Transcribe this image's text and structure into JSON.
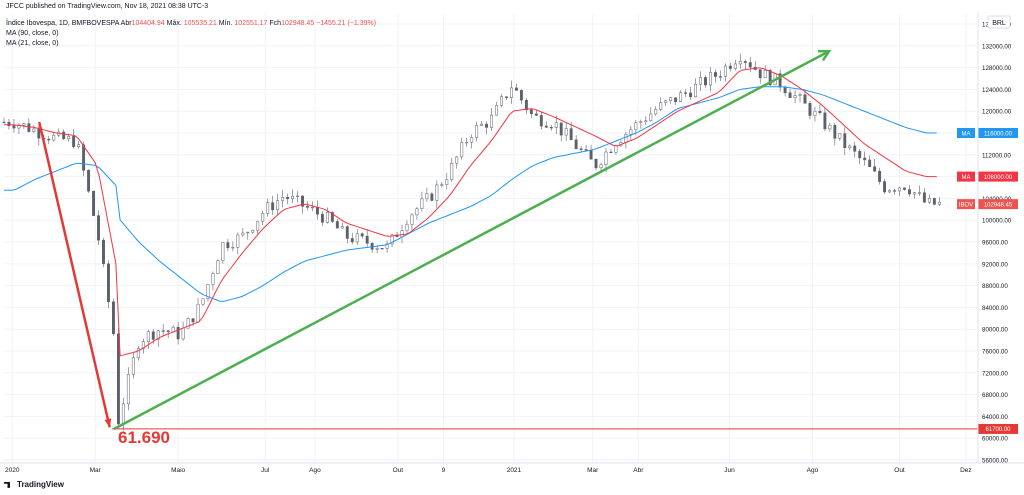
{
  "header": {
    "published": "JFCC published on TradingView.com, Nov 18, 2021 08:38 UTC-3",
    "symbol_line": {
      "name": "Índice Ibovespa, 1D, BMFBOVESPA",
      "open_label": "Abr",
      "open": "104404.94",
      "high_label": "Máx.",
      "high": "105535.21",
      "low_label": "Mín.",
      "low": "102551.17",
      "close_label": "Fch",
      "close": "102948.45",
      "change": "−1455.21 (−1.39%)"
    },
    "ma90": "MA (90, close, 0)",
    "ma21": "MA (21, close, 0)"
  },
  "currency": "BRL",
  "brand": "TradingView",
  "annotation": {
    "low_text": "61.690"
  },
  "price_labels": {
    "ma90": {
      "text": "MA",
      "value": "116000.00"
    },
    "ma21": {
      "text": "MA",
      "value": "108000.00"
    },
    "ibov": {
      "text": "IBOV",
      "value": "102948.45"
    },
    "low_line": {
      "value": "61700.00"
    }
  },
  "colors": {
    "up": "#26a69a",
    "down": "#ef5350",
    "candle_body": "#5d606b",
    "ma90": "#2196f3",
    "ma21": "#f23645",
    "trend_green": "#4caf50",
    "trend_red": "#e53935",
    "grid": "#f0f3fa"
  },
  "chart_data": {
    "type": "line",
    "title": "Índice Ibovespa, 1D, BMFBOVESPA",
    "ylim": [
      56000,
      136000
    ],
    "y_ticks": [
      56000,
      60000,
      64000,
      68000,
      72000,
      76000,
      80000,
      84000,
      88000,
      92000,
      96000,
      100000,
      104000,
      108000,
      112000,
      116000,
      120000,
      124000,
      128000,
      132000,
      136000
    ],
    "x_ticks": [
      "2020",
      "Mar",
      "Maio",
      "Jul",
      "Ago",
      "Out",
      "9",
      "2021",
      "Mar",
      "Abr",
      "Jun",
      "Ago",
      "Out",
      "Dez"
    ],
    "series": [
      {
        "name": "IBOV",
        "dates": [
          "2020-01",
          "2020-01",
          "2020-02",
          "2020-02",
          "2020-03",
          "2020-03",
          "2020-03",
          "2020-04",
          "2020-04",
          "2020-05",
          "2020-05",
          "2020-06",
          "2020-06",
          "2020-07",
          "2020-07",
          "2020-08",
          "2020-08",
          "2020-09",
          "2020-10",
          "2020-10",
          "2020-11",
          "2020-11",
          "2020-12",
          "2020-12",
          "2021-01",
          "2021-01",
          "2021-02",
          "2021-03",
          "2021-03",
          "2021-04",
          "2021-04",
          "2021-05",
          "2021-06",
          "2021-06",
          "2021-07",
          "2021-07",
          "2021-08",
          "2021-08",
          "2021-09",
          "2021-09",
          "2021-10",
          "2021-10",
          "2021-11"
        ],
        "values": [
          118000,
          116500,
          115000,
          114500,
          98000,
          74000,
          63000,
          78000,
          80000,
          79000,
          84500,
          95500,
          97000,
          101500,
          104500,
          102500,
          100500,
          97000,
          95000,
          100800,
          104000,
          109000,
          116000,
          118500,
          124800,
          119000,
          118000,
          110000,
          114500,
          117500,
          120500,
          122500,
          127000,
          130500,
          127000,
          125000,
          121500,
          118000,
          114000,
          110500,
          106000,
          106500,
          102948
        ]
      },
      {
        "name": "MA (21, close, 0)",
        "values": [
          117500,
          117000,
          116000,
          115500,
          110000,
          90000,
          75000,
          76000,
          78500,
          80000,
          81500,
          89000,
          94000,
          98500,
          102000,
          103000,
          102000,
          99500,
          97000,
          97500,
          100500,
          104500,
          110000,
          114500,
          120000,
          120500,
          119000,
          115500,
          113500,
          115000,
          117500,
          120000,
          123500,
          127500,
          128000,
          126500,
          124000,
          121000,
          117500,
          114000,
          111500,
          109000,
          108000
        ]
      },
      {
        "name": "MA (90, close, 0)",
        "values": [
          105500,
          107500,
          109000,
          110500,
          110000,
          106000,
          100500,
          96000,
          92500,
          89500,
          86500,
          85000,
          86000,
          88000,
          90500,
          92500,
          93500,
          94500,
          95500,
          97500,
          99500,
          101000,
          102500,
          104500,
          107500,
          110000,
          111500,
          113000,
          114500,
          116000,
          118000,
          120500,
          122500,
          124000,
          124500,
          124500,
          124000,
          123000,
          121500,
          120000,
          118500,
          117000,
          116000
        ]
      }
    ],
    "trendlines": [
      {
        "from": [
          "2020-01",
          118000
        ],
        "to": [
          "2020-03",
          62000
        ],
        "color": "red"
      },
      {
        "from": [
          "2020-03",
          61690
        ],
        "to": [
          "2021-09",
          131000
        ],
        "color": "green"
      }
    ],
    "hline": 61700
  }
}
